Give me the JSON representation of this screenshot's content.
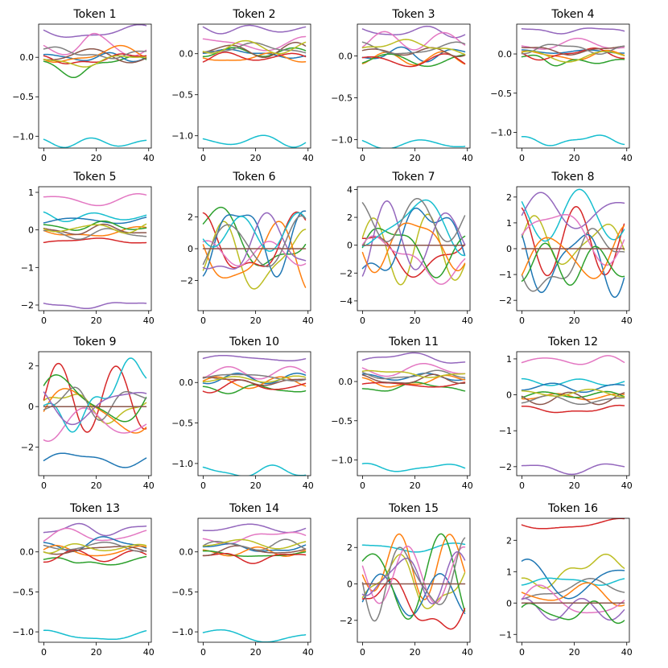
{
  "figure": {
    "panel_count": 16,
    "layout": "4x4 grid"
  },
  "palette": [
    "#1f77b4",
    "#ff7f0e",
    "#2ca02c",
    "#d62728",
    "#9467bd",
    "#8c564b",
    "#e377c2",
    "#7f7f7f",
    "#bcbd22",
    "#17becf"
  ],
  "chart_data": [
    {
      "type": "line",
      "title": "Token 1",
      "x_range": [
        0,
        39
      ],
      "xticks": [
        "0",
        "20",
        "40"
      ],
      "ylim": [
        -1.15,
        0.42
      ],
      "yticks": [
        "0.0",
        "−0.5",
        "−1.0"
      ],
      "yticks_values": [
        0,
        -0.5,
        -1.0
      ],
      "scale": 0.07,
      "series": [
        {
          "name": "s4",
          "base": 0.32
        },
        {
          "name": "s9",
          "base": -1.08
        },
        {
          "name": "s6",
          "base": 0.12,
          "bump": 0.1
        },
        {
          "name": "s2",
          "base": -0.08,
          "dip": -0.08
        },
        {
          "name": "s0",
          "base": 0.0
        },
        {
          "name": "s1",
          "base": 0.03
        },
        {
          "name": "s3",
          "base": -0.02
        },
        {
          "name": "s5",
          "base": 0.02
        },
        {
          "name": "s7",
          "base": 0.06
        },
        {
          "name": "s8",
          "base": -0.04
        }
      ]
    },
    {
      "type": "line",
      "title": "Token 2",
      "x_range": [
        0,
        39
      ],
      "xticks": [
        "0",
        "20",
        "40"
      ],
      "ylim": [
        -1.15,
        0.36
      ],
      "yticks": [
        "0.0",
        "−0.5",
        "−1.0"
      ],
      "yticks_values": [
        0,
        -0.5,
        -1.0
      ],
      "scale": 0.06,
      "series": [
        {
          "name": "s4",
          "base": 0.3
        },
        {
          "name": "s9",
          "base": -1.06
        },
        {
          "name": "s6",
          "base": 0.12
        },
        {
          "name": "s0",
          "base": 0.0
        },
        {
          "name": "s1",
          "base": -0.05
        },
        {
          "name": "s2",
          "base": 0.02
        },
        {
          "name": "s3",
          "base": -0.04
        },
        {
          "name": "s5",
          "base": 0.04
        },
        {
          "name": "s7",
          "base": 0.06
        },
        {
          "name": "s8",
          "base": 0.08
        }
      ]
    },
    {
      "type": "line",
      "title": "Token 3",
      "x_range": [
        0,
        39
      ],
      "xticks": [
        "0",
        "20",
        "40"
      ],
      "ylim": [
        -1.1,
        0.38
      ],
      "yticks": [
        "0.0",
        "−0.5",
        "−1.0"
      ],
      "yticks_values": [
        0,
        -0.5,
        -1.0
      ],
      "scale": 0.07,
      "series": [
        {
          "name": "s4",
          "base": 0.29
        },
        {
          "name": "s9",
          "base": -1.05
        },
        {
          "name": "s6",
          "base": 0.18
        },
        {
          "name": "s0",
          "base": 0.02
        },
        {
          "name": "s1",
          "base": -0.03
        },
        {
          "name": "s2",
          "base": -0.05
        },
        {
          "name": "s3",
          "base": -0.06
        },
        {
          "name": "s5",
          "base": 0.05
        },
        {
          "name": "s7",
          "base": 0.08
        },
        {
          "name": "s8",
          "base": 0.1
        }
      ]
    },
    {
      "type": "line",
      "title": "Token 4",
      "x_range": [
        0,
        39
      ],
      "xticks": [
        "0",
        "20",
        "40"
      ],
      "ylim": [
        -1.2,
        0.38
      ],
      "yticks": [
        "0.0",
        "−0.5",
        "−1.0"
      ],
      "yticks_values": [
        0,
        -0.5,
        -1.0
      ],
      "scale": 0.05,
      "series": [
        {
          "name": "s4",
          "base": 0.3
        },
        {
          "name": "s9",
          "base": -1.1
        },
        {
          "name": "s6",
          "base": 0.12
        },
        {
          "name": "s0",
          "base": 0.03
        },
        {
          "name": "s1",
          "base": -0.02
        },
        {
          "name": "s2",
          "base": -0.06,
          "dip": -0.1
        },
        {
          "name": "s3",
          "base": 0.0
        },
        {
          "name": "s5",
          "base": 0.05
        },
        {
          "name": "s7",
          "base": 0.07
        },
        {
          "name": "s8",
          "base": -0.03
        }
      ]
    },
    {
      "type": "line",
      "title": "Token 5",
      "x_range": [
        0,
        39
      ],
      "xticks": [
        "0",
        "20",
        "40"
      ],
      "ylim": [
        -2.15,
        1.15
      ],
      "yticks": [
        "1",
        "0",
        "−1",
        "−2"
      ],
      "yticks_values": [
        1,
        0,
        -1,
        -2
      ],
      "scale": 0.1,
      "series": [
        {
          "name": "s6",
          "base": 0.8
        },
        {
          "name": "s4",
          "base": -2.0
        },
        {
          "name": "s9",
          "base": 0.35
        },
        {
          "name": "s0",
          "base": 0.25
        },
        {
          "name": "s1",
          "base": -0.05
        },
        {
          "name": "s2",
          "base": 0.1
        },
        {
          "name": "s3",
          "base": -0.3
        },
        {
          "name": "s5",
          "base": 0.0
        },
        {
          "name": "s7",
          "base": -0.1
        },
        {
          "name": "s8",
          "base": 0.05
        }
      ]
    },
    {
      "type": "line",
      "title": "Token 6",
      "x_range": [
        0,
        39
      ],
      "xticks": [
        "0",
        "20",
        "40"
      ],
      "ylim": [
        -3.9,
        3.9
      ],
      "yticks": [
        "2",
        "0",
        "−2"
      ],
      "yticks_values": [
        2,
        0,
        -2
      ],
      "scale": 1.5,
      "series": [
        {
          "name": "s2",
          "base": 0.6
        },
        {
          "name": "s3",
          "base": 0.2
        },
        {
          "name": "s8",
          "base": -0.7
        },
        {
          "name": "s1",
          "base": -0.5
        },
        {
          "name": "s0",
          "base": 0.8
        },
        {
          "name": "s4",
          "base": 0.0
        },
        {
          "name": "s6",
          "base": -0.3
        },
        {
          "name": "s9",
          "base": 1.0
        },
        {
          "name": "s7",
          "base": 0.2
        },
        {
          "name": "s5",
          "base": 0.0,
          "flat": true
        }
      ]
    },
    {
      "type": "line",
      "title": "Token 7",
      "x_range": [
        0,
        39
      ],
      "xticks": [
        "0",
        "20",
        "40"
      ],
      "ylim": [
        -4.7,
        4.2
      ],
      "yticks": [
        "4",
        "2",
        "0",
        "−2",
        "−4"
      ],
      "yticks_values": [
        4,
        2,
        0,
        -2,
        -4
      ],
      "scale": 1.9,
      "series": [
        {
          "name": "s8",
          "base": -0.3
        },
        {
          "name": "s3",
          "base": -0.4
        },
        {
          "name": "s0",
          "base": 0.2
        },
        {
          "name": "s2",
          "base": -0.2
        },
        {
          "name": "s6",
          "base": -1.0
        },
        {
          "name": "s4",
          "base": 0.5
        },
        {
          "name": "s1",
          "base": 0.3
        },
        {
          "name": "s9",
          "base": 1.5
        },
        {
          "name": "s7",
          "base": 1.8
        },
        {
          "name": "s5",
          "base": 0.0,
          "flat": true
        }
      ]
    },
    {
      "type": "line",
      "title": "Token 8",
      "x_range": [
        0,
        39
      ],
      "xticks": [
        "0",
        "20",
        "40"
      ],
      "ylim": [
        -2.4,
        2.4
      ],
      "yticks": [
        "2",
        "1",
        "0",
        "−1",
        "−2"
      ],
      "yticks_values": [
        2,
        1,
        0,
        -1,
        -2
      ],
      "scale": 0.9,
      "series": [
        {
          "name": "s8",
          "base": 0.2
        },
        {
          "name": "s3",
          "base": 0.3
        },
        {
          "name": "s0",
          "base": -0.4
        },
        {
          "name": "s7",
          "base": -0.5
        },
        {
          "name": "s9",
          "base": 1.3
        },
        {
          "name": "s4",
          "base": 1.4
        },
        {
          "name": "s6",
          "base": 0.6
        },
        {
          "name": "s1",
          "base": -0.3
        },
        {
          "name": "s2",
          "base": -0.6
        },
        {
          "name": "s5",
          "base": 0.0,
          "flat": true
        }
      ]
    },
    {
      "type": "line",
      "title": "Token 9",
      "x_range": [
        0,
        39
      ],
      "xticks": [
        "0",
        "20",
        "40"
      ],
      "ylim": [
        -3.4,
        2.7
      ],
      "yticks": [
        "2",
        "0",
        "−2"
      ],
      "yticks_values": [
        2,
        0,
        -2
      ],
      "scale": 1.1,
      "series": [
        {
          "name": "s0",
          "base": -2.6,
          "amp": 0.3
        },
        {
          "name": "s8",
          "base": 0.0
        },
        {
          "name": "s3",
          "base": 0.4
        },
        {
          "name": "s1",
          "base": -0.2
        },
        {
          "name": "s6",
          "base": -0.8
        },
        {
          "name": "s2",
          "base": 0.3
        },
        {
          "name": "s7",
          "base": 0.2
        },
        {
          "name": "s9",
          "base": 0.6
        },
        {
          "name": "s4",
          "base": 0.1
        },
        {
          "name": "s5",
          "base": 0.0,
          "flat": true
        }
      ]
    },
    {
      "type": "line",
      "title": "Token 10",
      "x_range": [
        0,
        39
      ],
      "xticks": [
        "0",
        "20",
        "40"
      ],
      "ylim": [
        -1.15,
        0.38
      ],
      "yticks": [
        "0.0",
        "−0.5",
        "−1.0"
      ],
      "yticks_values": [
        0,
        -0.5,
        -1.0
      ],
      "scale": 0.05,
      "series": [
        {
          "name": "s4",
          "base": 0.3
        },
        {
          "name": "s9",
          "base": -1.1
        },
        {
          "name": "s6",
          "base": 0.12
        },
        {
          "name": "s0",
          "base": 0.05
        },
        {
          "name": "s1",
          "base": 0.0
        },
        {
          "name": "s2",
          "base": -0.08
        },
        {
          "name": "s3",
          "base": -0.04
        },
        {
          "name": "s5",
          "base": 0.02
        },
        {
          "name": "s7",
          "base": 0.07
        },
        {
          "name": "s8",
          "base": 0.04
        }
      ]
    },
    {
      "type": "line",
      "title": "Token 11",
      "x_range": [
        0,
        39
      ],
      "xticks": [
        "0",
        "20",
        "40"
      ],
      "ylim": [
        -1.2,
        0.38
      ],
      "yticks": [
        "0.0",
        "−0.5",
        "−1.0"
      ],
      "yticks_values": [
        0,
        -0.5,
        -1.0
      ],
      "scale": 0.05,
      "series": [
        {
          "name": "s4",
          "base": 0.29
        },
        {
          "name": "s9",
          "base": -1.1
        },
        {
          "name": "s6",
          "base": 0.15
        },
        {
          "name": "s0",
          "base": 0.06
        },
        {
          "name": "s1",
          "base": 0.0
        },
        {
          "name": "s2",
          "base": -0.07
        },
        {
          "name": "s3",
          "base": -0.04
        },
        {
          "name": "s5",
          "base": 0.02
        },
        {
          "name": "s7",
          "base": 0.08
        },
        {
          "name": "s8",
          "base": 0.1
        }
      ]
    },
    {
      "type": "line",
      "title": "Token 12",
      "x_range": [
        0,
        39
      ],
      "xticks": [
        "0",
        "20",
        "40"
      ],
      "ylim": [
        -2.25,
        1.2
      ],
      "yticks": [
        "1",
        "0",
        "−1",
        "−2"
      ],
      "yticks_values": [
        1,
        0,
        -1,
        -2
      ],
      "scale": 0.1,
      "series": [
        {
          "name": "s6",
          "base": 0.95
        },
        {
          "name": "s4",
          "base": -2.05
        },
        {
          "name": "s9",
          "base": 0.35
        },
        {
          "name": "s0",
          "base": 0.2
        },
        {
          "name": "s1",
          "base": -0.05
        },
        {
          "name": "s2",
          "base": 0.0
        },
        {
          "name": "s3",
          "base": -0.4
        },
        {
          "name": "s5",
          "base": -0.1
        },
        {
          "name": "s7",
          "base": -0.15
        },
        {
          "name": "s8",
          "base": 0.05
        }
      ]
    },
    {
      "type": "line",
      "title": "Token 13",
      "x_range": [
        0,
        39
      ],
      "xticks": [
        "0",
        "20",
        "40"
      ],
      "ylim": [
        -1.13,
        0.42
      ],
      "yticks": [
        "0.0",
        "−0.5",
        "−1.0"
      ],
      "yticks_values": [
        0,
        -0.5,
        -1.0
      ],
      "scale": 0.06,
      "series": [
        {
          "name": "s4",
          "base": 0.28
        },
        {
          "name": "s9",
          "base": -1.05
        },
        {
          "name": "s6",
          "base": 0.2
        },
        {
          "name": "s0",
          "base": 0.1
        },
        {
          "name": "s2",
          "base": -0.1,
          "dip": -0.08
        },
        {
          "name": "s1",
          "base": 0.0
        },
        {
          "name": "s3",
          "base": -0.05
        },
        {
          "name": "s5",
          "base": 0.03
        },
        {
          "name": "s7",
          "base": 0.07
        },
        {
          "name": "s8",
          "base": 0.05
        }
      ]
    },
    {
      "type": "line",
      "title": "Token 14",
      "x_range": [
        0,
        39
      ],
      "xticks": [
        "0",
        "20",
        "40"
      ],
      "ylim": [
        -1.13,
        0.42
      ],
      "yticks": [
        "0.0",
        "−0.5",
        "−1.0"
      ],
      "yticks_values": [
        0,
        -0.5,
        -1.0
      ],
      "scale": 0.05,
      "series": [
        {
          "name": "s4",
          "base": 0.3
        },
        {
          "name": "s9",
          "base": -1.05
        },
        {
          "name": "s6",
          "base": 0.18
        },
        {
          "name": "s0",
          "base": 0.05
        },
        {
          "name": "s1",
          "base": 0.0
        },
        {
          "name": "s2",
          "base": -0.03
        },
        {
          "name": "s3",
          "base": -0.07
        },
        {
          "name": "s5",
          "base": 0.02
        },
        {
          "name": "s7",
          "base": 0.08
        },
        {
          "name": "s8",
          "base": 0.1
        }
      ]
    },
    {
      "type": "line",
      "title": "Token 15",
      "x_range": [
        0,
        39
      ],
      "xticks": [
        "0",
        "20",
        "40"
      ],
      "ylim": [
        -3.2,
        3.6
      ],
      "yticks": [
        "2",
        "0",
        "−2"
      ],
      "yticks_values": [
        2,
        0,
        -2
      ],
      "scale": 1.5,
      "series": [
        {
          "name": "s9",
          "base": 2.0,
          "amp": 0.2
        },
        {
          "name": "s8",
          "base": 0.0
        },
        {
          "name": "s1",
          "base": 1.0
        },
        {
          "name": "s0",
          "base": -0.6
        },
        {
          "name": "s2",
          "base": 0.2
        },
        {
          "name": "s3",
          "base": -1.2
        },
        {
          "name": "s6",
          "base": 0.5
        },
        {
          "name": "s4",
          "base": 0.4
        },
        {
          "name": "s7",
          "base": 0.3
        },
        {
          "name": "s5",
          "base": 0.0,
          "flat": true
        }
      ]
    },
    {
      "type": "line",
      "title": "Token 16",
      "x_range": [
        0,
        39
      ],
      "xticks": [
        "0",
        "20",
        "40"
      ],
      "ylim": [
        -1.25,
        2.7
      ],
      "yticks": [
        "2",
        "1",
        "0",
        "−1"
      ],
      "yticks_values": [
        2,
        1,
        0,
        -1
      ],
      "scale": 0.45,
      "series": [
        {
          "name": "s3",
          "base": 2.5,
          "amp": 0.15
        },
        {
          "name": "s8",
          "base": 1.0
        },
        {
          "name": "s7",
          "base": 0.4
        },
        {
          "name": "s0",
          "base": 0.7
        },
        {
          "name": "s9",
          "base": 0.7,
          "amp": 0.1
        },
        {
          "name": "s1",
          "base": 0.3
        },
        {
          "name": "s6",
          "base": 0.0
        },
        {
          "name": "s4",
          "base": -0.2
        },
        {
          "name": "s2",
          "base": -0.3
        },
        {
          "name": "s5",
          "base": 0.0,
          "flat": true
        }
      ]
    }
  ]
}
